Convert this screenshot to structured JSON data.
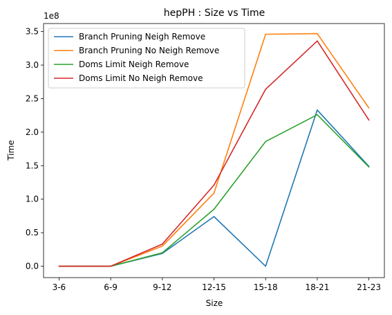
{
  "chart_data": {
    "type": "line",
    "title": "hepPH : Size vs Time",
    "xlabel": "Size",
    "ylabel": "Time",
    "y_multiplier_label": "1e8",
    "categories": [
      "3-6",
      "6-9",
      "9-12",
      "12-15",
      "15-18",
      "18-21",
      "21-23"
    ],
    "ylim": [
      -0.17,
      3.62
    ],
    "yticks": [
      0.0,
      0.5,
      1.0,
      1.5,
      2.0,
      2.5,
      3.0,
      3.5
    ],
    "ytick_labels": [
      "0.0",
      "0.5",
      "1.0",
      "1.5",
      "2.0",
      "2.5",
      "3.0",
      "3.5"
    ],
    "grid": false,
    "legend_position": "top-left",
    "series": [
      {
        "name": "Branch Pruning Neigh Remove",
        "color": "#1f77b4",
        "values": [
          0.0,
          0.0,
          0.19,
          0.74,
          0.0,
          2.33,
          1.49
        ]
      },
      {
        "name": "Branch Pruning No Neigh Remove",
        "color": "#ff7f0e",
        "values": [
          0.0,
          0.0,
          0.3,
          1.09,
          3.46,
          3.47,
          2.36
        ]
      },
      {
        "name": "Doms Limit Neigh Remove",
        "color": "#2ca02c",
        "values": [
          0.0,
          0.0,
          0.2,
          0.85,
          1.86,
          2.26,
          1.48
        ]
      },
      {
        "name": "Doms Limit No Neigh Remove",
        "color": "#d62728",
        "values": [
          0.0,
          0.0,
          0.33,
          1.21,
          2.64,
          3.36,
          2.18
        ]
      }
    ]
  }
}
